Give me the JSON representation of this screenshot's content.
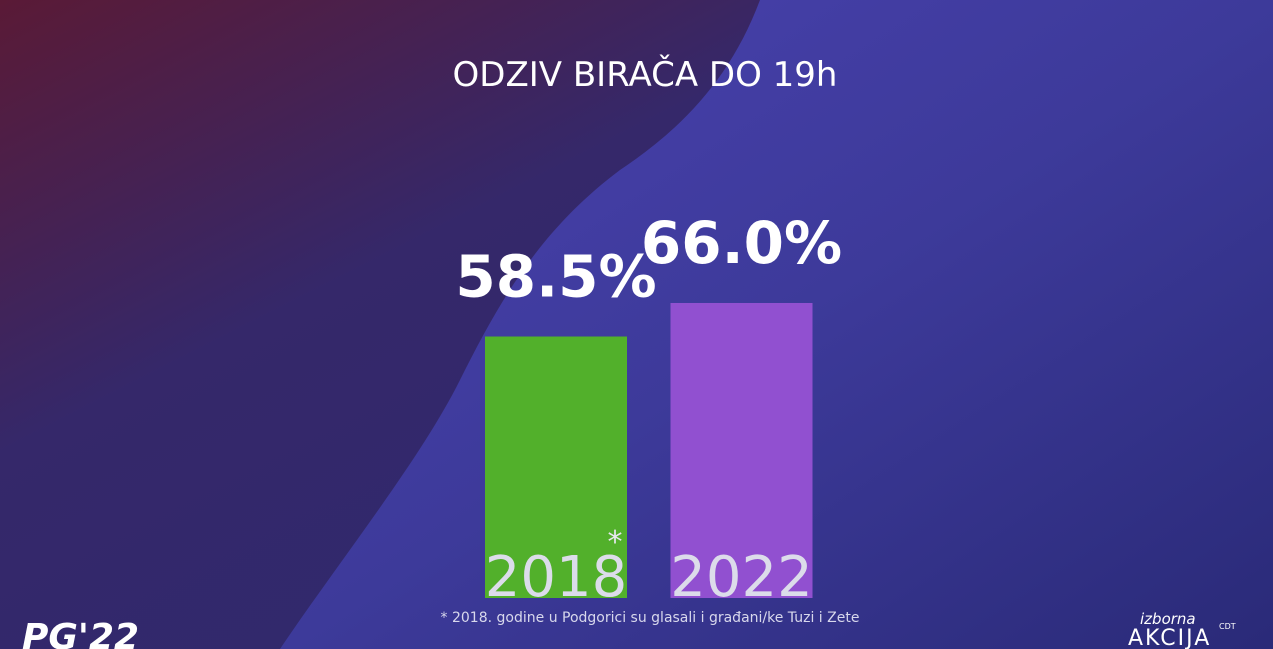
{
  "chart_data": {
    "type": "bar",
    "title": "ODZIV BIRAČA DO 19h",
    "categories": [
      "2018",
      "2022"
    ],
    "values": [
      58.5,
      66.0
    ],
    "value_labels": [
      "58.5%",
      "66.0%"
    ],
    "colors": [
      "#52b02b",
      "#9150d0"
    ],
    "annotation": "*",
    "footnote": "* 2018. godine u Podgorici su glasali i građani/ke Tuzi i Zete"
  },
  "logos": {
    "left": "PG'22",
    "right_top": "izborna",
    "right_main": "AKCIJA",
    "right_small": "CDT"
  }
}
